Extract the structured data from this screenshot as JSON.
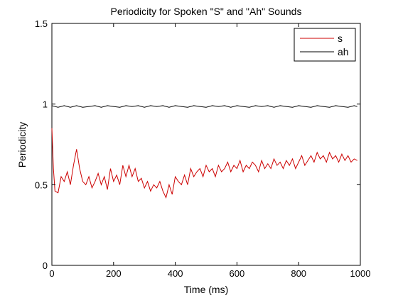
{
  "chart_data": {
    "type": "line",
    "title": "Periodicity for Spoken \"S\" and \"Ah\" Sounds",
    "xlabel": "Time (ms)",
    "ylabel": "Periodicity",
    "xlim": [
      0,
      1000
    ],
    "ylim": [
      0,
      1.5
    ],
    "xticks": [
      0,
      200,
      400,
      600,
      800,
      1000
    ],
    "yticks": [
      0,
      0.5,
      1,
      1.5
    ],
    "xtick_labels": [
      "0",
      "200",
      "400",
      "600",
      "800",
      "1000"
    ],
    "ytick_labels": [
      "0",
      "0.5",
      "1",
      "1.5"
    ],
    "grid": false,
    "legend": "top-right",
    "series": [
      {
        "name": "s",
        "color": "#cc0000",
        "x": [
          0,
          5,
          10,
          20,
          30,
          40,
          50,
          60,
          70,
          80,
          90,
          100,
          110,
          120,
          130,
          140,
          150,
          160,
          170,
          180,
          190,
          200,
          210,
          220,
          230,
          240,
          250,
          260,
          270,
          280,
          290,
          300,
          310,
          320,
          330,
          340,
          350,
          360,
          370,
          380,
          390,
          400,
          410,
          420,
          430,
          440,
          450,
          460,
          470,
          480,
          490,
          500,
          510,
          520,
          530,
          540,
          550,
          560,
          570,
          580,
          590,
          600,
          610,
          620,
          630,
          640,
          650,
          660,
          670,
          680,
          690,
          700,
          710,
          720,
          730,
          740,
          750,
          760,
          770,
          780,
          790,
          800,
          810,
          820,
          830,
          840,
          850,
          860,
          870,
          880,
          890,
          900,
          910,
          920,
          930,
          940,
          950,
          960,
          970,
          980,
          990
        ],
        "y": [
          0.85,
          0.6,
          0.46,
          0.45,
          0.55,
          0.52,
          0.58,
          0.5,
          0.62,
          0.72,
          0.6,
          0.52,
          0.5,
          0.55,
          0.48,
          0.52,
          0.57,
          0.5,
          0.55,
          0.47,
          0.6,
          0.52,
          0.56,
          0.5,
          0.62,
          0.55,
          0.62,
          0.55,
          0.6,
          0.52,
          0.54,
          0.48,
          0.52,
          0.46,
          0.5,
          0.48,
          0.52,
          0.46,
          0.42,
          0.5,
          0.44,
          0.55,
          0.52,
          0.5,
          0.56,
          0.5,
          0.6,
          0.55,
          0.58,
          0.6,
          0.55,
          0.62,
          0.58,
          0.6,
          0.55,
          0.62,
          0.58,
          0.6,
          0.64,
          0.58,
          0.62,
          0.6,
          0.65,
          0.58,
          0.62,
          0.6,
          0.64,
          0.62,
          0.58,
          0.65,
          0.6,
          0.63,
          0.6,
          0.66,
          0.62,
          0.64,
          0.6,
          0.65,
          0.62,
          0.66,
          0.6,
          0.64,
          0.68,
          0.62,
          0.65,
          0.68,
          0.64,
          0.7,
          0.66,
          0.68,
          0.64,
          0.7,
          0.66,
          0.68,
          0.64,
          0.69,
          0.65,
          0.68,
          0.64,
          0.66,
          0.65
        ]
      },
      {
        "name": "ah",
        "color": "#000000",
        "x": [
          0,
          20,
          40,
          60,
          80,
          100,
          120,
          140,
          160,
          180,
          200,
          220,
          240,
          260,
          280,
          300,
          320,
          340,
          360,
          380,
          400,
          420,
          440,
          460,
          480,
          500,
          520,
          540,
          560,
          580,
          600,
          620,
          640,
          660,
          680,
          700,
          720,
          740,
          760,
          780,
          800,
          820,
          840,
          860,
          880,
          900,
          920,
          940,
          960,
          980,
          990
        ],
        "y": [
          0.99,
          0.98,
          0.99,
          0.98,
          0.99,
          0.98,
          0.985,
          0.99,
          0.98,
          0.99,
          0.985,
          0.98,
          0.99,
          0.985,
          0.99,
          0.98,
          0.99,
          0.985,
          0.99,
          0.98,
          0.99,
          0.985,
          0.98,
          0.99,
          0.985,
          0.98,
          0.99,
          0.985,
          0.99,
          0.98,
          0.99,
          0.985,
          0.98,
          0.99,
          0.985,
          0.99,
          0.98,
          0.99,
          0.985,
          0.98,
          0.99,
          0.985,
          0.98,
          0.99,
          0.985,
          0.98,
          0.99,
          0.985,
          0.98,
          0.99,
          0.985
        ]
      }
    ]
  }
}
